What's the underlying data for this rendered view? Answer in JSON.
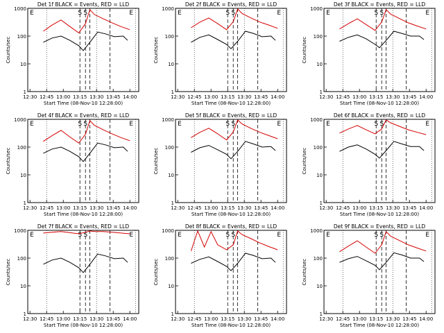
{
  "chart_data": {
    "type": "line",
    "y_scale": "log",
    "ylim": [
      1,
      1000
    ],
    "ylabel": "Counts/sec",
    "y_ticks": [
      "1",
      "10",
      "100",
      "1000"
    ],
    "x_ticks": [
      "12:30",
      "12:45",
      "13:00",
      "13:15",
      "13:30",
      "13:45",
      "14:00"
    ],
    "xlim": [
      "12:28",
      "14:08"
    ],
    "xlabel": "Start Time (08-Nov-10 12:28:00)",
    "series_legend": {
      "black": "Events",
      "red": "LLD"
    },
    "colors": {
      "events": "#000000",
      "lld": "#d40000",
      "grid": "#000000"
    },
    "dotted_lines_min": [
      17,
      62,
      97
    ],
    "dashed_lines_min": [
      47,
      52,
      56,
      74
    ],
    "markers": [
      "E",
      "S",
      "S",
      "E"
    ],
    "panels": [
      {
        "title": "Det 1f BLACK = Events, RED = LLD",
        "events": [
          {
            "min": 14,
            "y": 60
          },
          {
            "min": 22,
            "y": 85
          },
          {
            "min": 30,
            "y": 100
          },
          {
            "min": 38,
            "y": 70
          },
          {
            "min": 46,
            "y": 45
          },
          {
            "min": 50,
            "y": 30
          },
          {
            "min": 56,
            "y": 60
          },
          {
            "min": 63,
            "y": 140
          },
          {
            "min": 70,
            "y": 120
          },
          {
            "min": 78,
            "y": 95
          },
          {
            "min": 86,
            "y": 100
          },
          {
            "min": 90,
            "y": 70
          }
        ],
        "lld": [
          {
            "min": 14,
            "y": 150
          },
          {
            "min": 22,
            "y": 250
          },
          {
            "min": 30,
            "y": 380
          },
          {
            "min": 38,
            "y": 220
          },
          {
            "min": 46,
            "y": 130
          },
          {
            "min": 52,
            "y": 280
          },
          {
            "min": 56,
            "y": 900
          },
          {
            "min": 60,
            "y": 600
          },
          {
            "min": 68,
            "y": 420
          },
          {
            "min": 76,
            "y": 300
          },
          {
            "min": 84,
            "y": 220
          },
          {
            "min": 92,
            "y": 170
          }
        ]
      },
      {
        "title": "Det 2f BLACK = Events, RED = LLD",
        "events": [
          {
            "min": 14,
            "y": 60
          },
          {
            "min": 22,
            "y": 90
          },
          {
            "min": 30,
            "y": 110
          },
          {
            "min": 38,
            "y": 75
          },
          {
            "min": 46,
            "y": 50
          },
          {
            "min": 50,
            "y": 35
          },
          {
            "min": 56,
            "y": 65
          },
          {
            "min": 63,
            "y": 150
          },
          {
            "min": 70,
            "y": 125
          },
          {
            "min": 78,
            "y": 95
          },
          {
            "min": 86,
            "y": 100
          },
          {
            "min": 90,
            "y": 70
          }
        ],
        "lld": [
          {
            "min": 14,
            "y": 200
          },
          {
            "min": 22,
            "y": 320
          },
          {
            "min": 30,
            "y": 450
          },
          {
            "min": 38,
            "y": 280
          },
          {
            "min": 46,
            "y": 170
          },
          {
            "min": 52,
            "y": 330
          },
          {
            "min": 56,
            "y": 950
          },
          {
            "min": 60,
            "y": 650
          },
          {
            "min": 68,
            "y": 450
          },
          {
            "min": 76,
            "y": 320
          },
          {
            "min": 84,
            "y": 250
          },
          {
            "min": 92,
            "y": 190
          }
        ]
      },
      {
        "title": "Det 3f BLACK = Events, RED = LLD",
        "events": [
          {
            "min": 14,
            "y": 65
          },
          {
            "min": 22,
            "y": 90
          },
          {
            "min": 30,
            "y": 110
          },
          {
            "min": 38,
            "y": 80
          },
          {
            "min": 46,
            "y": 50
          },
          {
            "min": 50,
            "y": 38
          },
          {
            "min": 56,
            "y": 70
          },
          {
            "min": 63,
            "y": 150
          },
          {
            "min": 70,
            "y": 125
          },
          {
            "min": 78,
            "y": 100
          },
          {
            "min": 86,
            "y": 100
          },
          {
            "min": 90,
            "y": 75
          }
        ],
        "lld": [
          {
            "min": 14,
            "y": 180
          },
          {
            "min": 22,
            "y": 280
          },
          {
            "min": 30,
            "y": 420
          },
          {
            "min": 38,
            "y": 260
          },
          {
            "min": 46,
            "y": 160
          },
          {
            "min": 52,
            "y": 320
          },
          {
            "min": 56,
            "y": 900
          },
          {
            "min": 60,
            "y": 620
          },
          {
            "min": 68,
            "y": 430
          },
          {
            "min": 76,
            "y": 300
          },
          {
            "min": 84,
            "y": 230
          },
          {
            "min": 92,
            "y": 180
          }
        ]
      },
      {
        "title": "Det 4f BLACK = Events, RED = LLD",
        "events": [
          {
            "min": 14,
            "y": 60
          },
          {
            "min": 22,
            "y": 85
          },
          {
            "min": 30,
            "y": 100
          },
          {
            "min": 38,
            "y": 70
          },
          {
            "min": 46,
            "y": 45
          },
          {
            "min": 50,
            "y": 30
          },
          {
            "min": 56,
            "y": 60
          },
          {
            "min": 63,
            "y": 140
          },
          {
            "min": 70,
            "y": 120
          },
          {
            "min": 78,
            "y": 95
          },
          {
            "min": 86,
            "y": 100
          },
          {
            "min": 90,
            "y": 70
          }
        ],
        "lld": [
          {
            "min": 14,
            "y": 160
          },
          {
            "min": 22,
            "y": 260
          },
          {
            "min": 30,
            "y": 400
          },
          {
            "min": 38,
            "y": 230
          },
          {
            "min": 46,
            "y": 140
          },
          {
            "min": 52,
            "y": 290
          },
          {
            "min": 56,
            "y": 900
          },
          {
            "min": 60,
            "y": 610
          },
          {
            "min": 68,
            "y": 420
          },
          {
            "min": 76,
            "y": 300
          },
          {
            "min": 84,
            "y": 220
          },
          {
            "min": 92,
            "y": 170
          }
        ]
      },
      {
        "title": "Det 5f BLACK = Events, RED = LLD",
        "events": [
          {
            "min": 14,
            "y": 65
          },
          {
            "min": 22,
            "y": 95
          },
          {
            "min": 30,
            "y": 115
          },
          {
            "min": 38,
            "y": 80
          },
          {
            "min": 46,
            "y": 55
          },
          {
            "min": 50,
            "y": 38
          },
          {
            "min": 56,
            "y": 70
          },
          {
            "min": 63,
            "y": 160
          },
          {
            "min": 70,
            "y": 130
          },
          {
            "min": 78,
            "y": 100
          },
          {
            "min": 86,
            "y": 105
          },
          {
            "min": 90,
            "y": 75
          }
        ],
        "lld": [
          {
            "min": 14,
            "y": 220
          },
          {
            "min": 22,
            "y": 340
          },
          {
            "min": 30,
            "y": 480
          },
          {
            "min": 38,
            "y": 300
          },
          {
            "min": 46,
            "y": 180
          },
          {
            "min": 52,
            "y": 350
          },
          {
            "min": 56,
            "y": 950
          },
          {
            "min": 60,
            "y": 680
          },
          {
            "min": 68,
            "y": 470
          },
          {
            "min": 76,
            "y": 340
          },
          {
            "min": 84,
            "y": 260
          },
          {
            "min": 92,
            "y": 200
          }
        ]
      },
      {
        "title": "Det 6f BLACK = Events, RED = LLD",
        "events": [
          {
            "min": 14,
            "y": 70
          },
          {
            "min": 22,
            "y": 100
          },
          {
            "min": 30,
            "y": 120
          },
          {
            "min": 38,
            "y": 85
          },
          {
            "min": 46,
            "y": 55
          },
          {
            "min": 50,
            "y": 40
          },
          {
            "min": 56,
            "y": 75
          },
          {
            "min": 63,
            "y": 160
          },
          {
            "min": 70,
            "y": 130
          },
          {
            "min": 78,
            "y": 105
          },
          {
            "min": 86,
            "y": 105
          },
          {
            "min": 90,
            "y": 75
          }
        ],
        "lld": [
          {
            "min": 14,
            "y": 320
          },
          {
            "min": 22,
            "y": 450
          },
          {
            "min": 30,
            "y": 600
          },
          {
            "min": 38,
            "y": 420
          },
          {
            "min": 46,
            "y": 300
          },
          {
            "min": 52,
            "y": 450
          },
          {
            "min": 56,
            "y": 950
          },
          {
            "min": 60,
            "y": 750
          },
          {
            "min": 68,
            "y": 560
          },
          {
            "min": 76,
            "y": 420
          },
          {
            "min": 84,
            "y": 340
          },
          {
            "min": 92,
            "y": 280
          }
        ]
      },
      {
        "title": "Det 7f BLACK = Events, RED = LLD",
        "events": [
          {
            "min": 14,
            "y": 60
          },
          {
            "min": 22,
            "y": 85
          },
          {
            "min": 30,
            "y": 100
          },
          {
            "min": 38,
            "y": 70
          },
          {
            "min": 46,
            "y": 45
          },
          {
            "min": 50,
            "y": 30
          },
          {
            "min": 56,
            "y": 60
          },
          {
            "min": 63,
            "y": 140
          },
          {
            "min": 70,
            "y": 120
          },
          {
            "min": 78,
            "y": 95
          },
          {
            "min": 86,
            "y": 100
          },
          {
            "min": 90,
            "y": 70
          }
        ],
        "lld": [
          {
            "min": 14,
            "y": 800
          },
          {
            "min": 22,
            "y": 850
          },
          {
            "min": 30,
            "y": 900
          },
          {
            "min": 38,
            "y": 820
          },
          {
            "min": 46,
            "y": 750
          },
          {
            "min": 52,
            "y": 850
          },
          {
            "min": 56,
            "y": 950
          },
          {
            "min": 60,
            "y": 900
          },
          {
            "min": 68,
            "y": 900
          },
          {
            "min": 76,
            "y": 850
          },
          {
            "min": 84,
            "y": 800
          },
          {
            "min": 92,
            "y": 750
          }
        ]
      },
      {
        "title": "Det 8f BLACK = Events, RED = LLD",
        "events": [
          {
            "min": 14,
            "y": 65
          },
          {
            "min": 22,
            "y": 90
          },
          {
            "min": 30,
            "y": 110
          },
          {
            "min": 38,
            "y": 75
          },
          {
            "min": 46,
            "y": 50
          },
          {
            "min": 50,
            "y": 35
          },
          {
            "min": 56,
            "y": 65
          },
          {
            "min": 63,
            "y": 150
          },
          {
            "min": 70,
            "y": 125
          },
          {
            "min": 78,
            "y": 95
          },
          {
            "min": 86,
            "y": 100
          },
          {
            "min": 90,
            "y": 70
          }
        ],
        "lld": [
          {
            "min": 14,
            "y": 180
          },
          {
            "min": 20,
            "y": 950
          },
          {
            "min": 26,
            "y": 250
          },
          {
            "min": 32,
            "y": 900
          },
          {
            "min": 38,
            "y": 300
          },
          {
            "min": 46,
            "y": 200
          },
          {
            "min": 52,
            "y": 300
          },
          {
            "min": 56,
            "y": 950
          },
          {
            "min": 60,
            "y": 700
          },
          {
            "min": 68,
            "y": 500
          },
          {
            "min": 76,
            "y": 350
          },
          {
            "min": 84,
            "y": 260
          },
          {
            "min": 92,
            "y": 200
          }
        ]
      },
      {
        "title": "Det 9f BLACK = Events, RED = LLD",
        "events": [
          {
            "min": 14,
            "y": 70
          },
          {
            "min": 22,
            "y": 95
          },
          {
            "min": 30,
            "y": 115
          },
          {
            "min": 38,
            "y": 80
          },
          {
            "min": 46,
            "y": 55
          },
          {
            "min": 50,
            "y": 38
          },
          {
            "min": 56,
            "y": 70
          },
          {
            "min": 63,
            "y": 155
          },
          {
            "min": 70,
            "y": 130
          },
          {
            "min": 78,
            "y": 100
          },
          {
            "min": 86,
            "y": 100
          },
          {
            "min": 90,
            "y": 75
          }
        ],
        "lld": [
          {
            "min": 14,
            "y": 170
          },
          {
            "min": 22,
            "y": 270
          },
          {
            "min": 30,
            "y": 420
          },
          {
            "min": 38,
            "y": 250
          },
          {
            "min": 46,
            "y": 150
          },
          {
            "min": 52,
            "y": 300
          },
          {
            "min": 56,
            "y": 900
          },
          {
            "min": 60,
            "y": 620
          },
          {
            "min": 68,
            "y": 430
          },
          {
            "min": 76,
            "y": 300
          },
          {
            "min": 84,
            "y": 230
          },
          {
            "min": 92,
            "y": 180
          }
        ]
      }
    ]
  }
}
